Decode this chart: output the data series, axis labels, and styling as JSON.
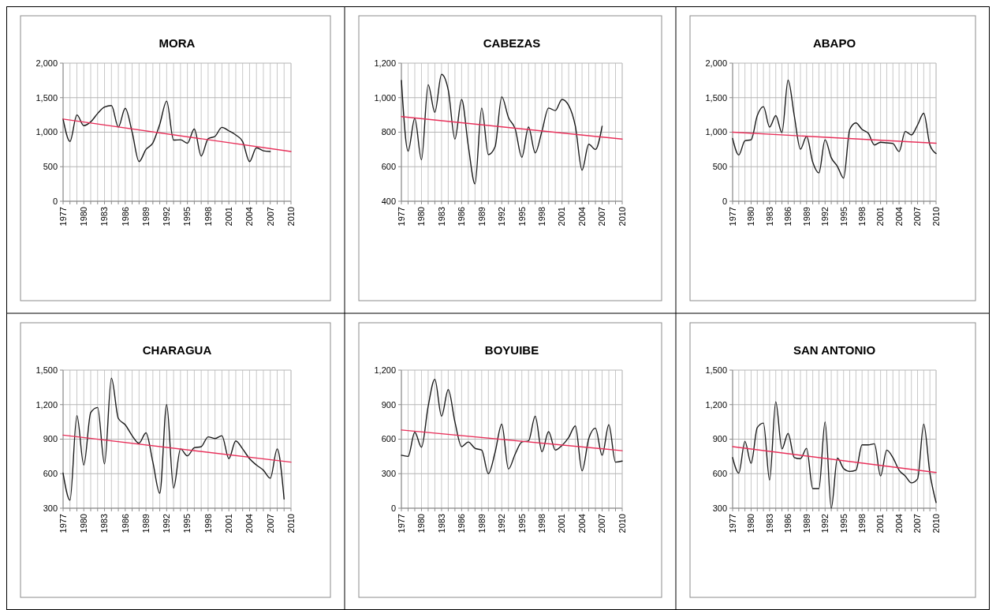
{
  "chart_data": [
    {
      "type": "line",
      "title": "MORA",
      "xlim": [
        1977,
        2010
      ],
      "ylim": [
        0,
        2000
      ],
      "yticks": [
        0,
        500,
        {
          "value": 1000,
          "label": "1,000"
        },
        {
          "value": 1500,
          "label": "1,500"
        },
        {
          "value": 2000,
          "label": "2,000"
        }
      ],
      "xticks": [
        1977,
        {
          "value": 1978,
          "label": null
        },
        {
          "value": 1979,
          "label": null
        },
        1980,
        {
          "value": 1981,
          "label": null
        },
        {
          "value": 1982,
          "label": null
        },
        1983,
        {
          "value": 1984,
          "label": null
        },
        {
          "value": 1985,
          "label": null
        },
        1986,
        {
          "value": 1987,
          "label": null
        },
        {
          "value": 1988,
          "label": null
        },
        1989,
        {
          "value": 1990,
          "label": null
        },
        {
          "value": 1991,
          "label": null
        },
        1992,
        {
          "value": 1993,
          "label": null
        },
        {
          "value": 1994,
          "label": null
        },
        1995,
        {
          "value": 1996,
          "label": null
        },
        {
          "value": 1997,
          "label": null
        },
        1998,
        {
          "value": 1999,
          "label": null
        },
        {
          "value": 2000,
          "label": null
        },
        2001,
        {
          "value": 2002,
          "label": null
        },
        {
          "value": 2003,
          "label": null
        },
        2004,
        {
          "value": 2005,
          "label": null
        },
        {
          "value": 2006,
          "label": null
        },
        2007,
        {
          "value": 2008,
          "label": null
        },
        {
          "value": 2009,
          "label": null
        },
        2010
      ],
      "grid": true,
      "series": [
        {
          "type": "line",
          "color": "#1a1a1a",
          "x": [
            1977,
            1978,
            1979,
            1980,
            1981,
            1982,
            1983,
            1984,
            1985,
            1986,
            1987,
            1988,
            1989,
            1990,
            1991,
            1992,
            1993,
            1994,
            1995,
            1996,
            1997,
            1998,
            1999,
            2000,
            2001,
            2002,
            2003,
            2004,
            2005,
            2006,
            2007
          ],
          "values": [
            1190,
            865,
            1250,
            1095,
            1150,
            1270,
            1365,
            1385,
            1075,
            1345,
            1000,
            575,
            750,
            845,
            1115,
            1450,
            885,
            890,
            840,
            1045,
            655,
            905,
            940,
            1070,
            1020,
            960,
            865,
            575,
            775,
            730,
            720
          ]
        },
        {
          "type": "line",
          "color": "#e8305a",
          "x": [
            1977,
            2010
          ],
          "values": [
            1190,
            720
          ]
        }
      ]
    },
    {
      "type": "line",
      "title": "CABEZAS",
      "xlim": [
        1977,
        2010
      ],
      "ylim": [
        400,
        1200
      ],
      "yticks": [
        400,
        600,
        800,
        {
          "value": 1000,
          "label": "1,000"
        },
        {
          "value": 1200,
          "label": "1,200"
        }
      ],
      "xticks": [
        1977,
        {
          "value": 1978,
          "label": null
        },
        {
          "value": 1979,
          "label": null
        },
        1980,
        {
          "value": 1981,
          "label": null
        },
        {
          "value": 1982,
          "label": null
        },
        1983,
        {
          "value": 1984,
          "label": null
        },
        {
          "value": 1985,
          "label": null
        },
        1986,
        {
          "value": 1987,
          "label": null
        },
        {
          "value": 1988,
          "label": null
        },
        1989,
        {
          "value": 1990,
          "label": null
        },
        {
          "value": 1991,
          "label": null
        },
        1992,
        {
          "value": 1993,
          "label": null
        },
        {
          "value": 1994,
          "label": null
        },
        1995,
        {
          "value": 1996,
          "label": null
        },
        {
          "value": 1997,
          "label": null
        },
        1998,
        {
          "value": 1999,
          "label": null
        },
        {
          "value": 2000,
          "label": null
        },
        2001,
        {
          "value": 2002,
          "label": null
        },
        {
          "value": 2003,
          "label": null
        },
        2004,
        {
          "value": 2005,
          "label": null
        },
        {
          "value": 2006,
          "label": null
        },
        2007,
        {
          "value": 2008,
          "label": null
        },
        {
          "value": 2009,
          "label": null
        },
        2010
      ],
      "grid": true,
      "series": [
        {
          "type": "line",
          "color": "#1a1a1a",
          "x": [
            1977,
            1978,
            1979,
            1980,
            1981,
            1982,
            1983,
            1984,
            1985,
            1986,
            1987,
            1988,
            1989,
            1990,
            1991,
            1992,
            1993,
            1994,
            1995,
            1996,
            1997,
            1998,
            1999,
            2000,
            2001,
            2002,
            2003,
            2004,
            2005,
            2006,
            2007
          ],
          "values": [
            1100,
            690,
            880,
            640,
            1075,
            915,
            1135,
            1045,
            760,
            990,
            720,
            500,
            940,
            670,
            715,
            1005,
            885,
            820,
            655,
            830,
            680,
            805,
            940,
            925,
            990,
            955,
            835,
            580,
            730,
            700,
            835
          ]
        },
        {
          "type": "line",
          "color": "#e8305a",
          "x": [
            1977,
            2010
          ],
          "values": [
            890,
            760
          ]
        }
      ]
    },
    {
      "type": "line",
      "title": "ABAPO",
      "xlim": [
        1977,
        2010
      ],
      "ylim": [
        0,
        2000
      ],
      "yticks": [
        0,
        500,
        {
          "value": 1000,
          "label": "1,000"
        },
        {
          "value": 1500,
          "label": "1,500"
        },
        {
          "value": 2000,
          "label": "2,000"
        }
      ],
      "xticks": [
        1977,
        {
          "value": 1978,
          "label": null
        },
        {
          "value": 1979,
          "label": null
        },
        1980,
        {
          "value": 1981,
          "label": null
        },
        {
          "value": 1982,
          "label": null
        },
        1983,
        {
          "value": 1984,
          "label": null
        },
        {
          "value": 1985,
          "label": null
        },
        1986,
        {
          "value": 1987,
          "label": null
        },
        {
          "value": 1988,
          "label": null
        },
        1989,
        {
          "value": 1990,
          "label": null
        },
        {
          "value": 1991,
          "label": null
        },
        1992,
        {
          "value": 1993,
          "label": null
        },
        {
          "value": 1994,
          "label": null
        },
        1995,
        {
          "value": 1996,
          "label": null
        },
        {
          "value": 1997,
          "label": null
        },
        1998,
        {
          "value": 1999,
          "label": null
        },
        {
          "value": 2000,
          "label": null
        },
        2001,
        {
          "value": 2002,
          "label": null
        },
        {
          "value": 2003,
          "label": null
        },
        2004,
        {
          "value": 2005,
          "label": null
        },
        {
          "value": 2006,
          "label": null
        },
        2007,
        {
          "value": 2008,
          "label": null
        },
        {
          "value": 2009,
          "label": null
        },
        2010
      ],
      "grid": true,
      "series": [
        {
          "type": "line",
          "color": "#1a1a1a",
          "x": [
            1977,
            1978,
            1979,
            1980,
            1981,
            1982,
            1983,
            1984,
            1985,
            1986,
            1987,
            1988,
            1989,
            1990,
            1991,
            1992,
            1993,
            1994,
            1995,
            1996,
            1997,
            1998,
            1999,
            2000,
            2001,
            2002,
            2003,
            2004,
            2005,
            2006,
            2007,
            2008,
            2009,
            2010
          ],
          "values": [
            910,
            670,
            875,
            890,
            1240,
            1370,
            1075,
            1240,
            995,
            1755,
            1240,
            755,
            940,
            565,
            410,
            890,
            630,
            505,
            335,
            1040,
            1135,
            1040,
            985,
            815,
            855,
            845,
            835,
            720,
            1010,
            960,
            1105,
            1275,
            815,
            690
          ]
        },
        {
          "type": "line",
          "color": "#e8305a",
          "x": [
            1977,
            2010
          ],
          "values": [
            1000,
            840
          ]
        }
      ]
    },
    {
      "type": "line",
      "title": "CHARAGUA",
      "xlim": [
        1977,
        2010
      ],
      "ylim": [
        300,
        1500
      ],
      "yticks": [
        300,
        600,
        900,
        {
          "value": 1200,
          "label": "1,200"
        },
        {
          "value": 1500,
          "label": "1,500"
        }
      ],
      "xticks": [
        1977,
        {
          "value": 1978,
          "label": null
        },
        {
          "value": 1979,
          "label": null
        },
        1980,
        {
          "value": 1981,
          "label": null
        },
        {
          "value": 1982,
          "label": null
        },
        1983,
        {
          "value": 1984,
          "label": null
        },
        {
          "value": 1985,
          "label": null
        },
        1986,
        {
          "value": 1987,
          "label": null
        },
        {
          "value": 1988,
          "label": null
        },
        1989,
        {
          "value": 1990,
          "label": null
        },
        {
          "value": 1991,
          "label": null
        },
        1992,
        {
          "value": 1993,
          "label": null
        },
        {
          "value": 1994,
          "label": null
        },
        1995,
        {
          "value": 1996,
          "label": null
        },
        {
          "value": 1997,
          "label": null
        },
        1998,
        {
          "value": 1999,
          "label": null
        },
        {
          "value": 2000,
          "label": null
        },
        2001,
        {
          "value": 2002,
          "label": null
        },
        {
          "value": 2003,
          "label": null
        },
        2004,
        {
          "value": 2005,
          "label": null
        },
        {
          "value": 2006,
          "label": null
        },
        2007,
        {
          "value": 2008,
          "label": null
        },
        {
          "value": 2009,
          "label": null
        },
        2010
      ],
      "grid": true,
      "series": [
        {
          "type": "line",
          "color": "#1a1a1a",
          "x": [
            1977,
            1978,
            1979,
            1980,
            1981,
            1982,
            1983,
            1984,
            1985,
            1986,
            1987,
            1988,
            1989,
            1990,
            1991,
            1992,
            1993,
            1994,
            1995,
            1996,
            1997,
            1998,
            1999,
            2000,
            2001,
            2002,
            2003,
            2004,
            2005,
            2006,
            2007,
            2008,
            2009
          ],
          "values": [
            605,
            370,
            1105,
            675,
            1130,
            1175,
            685,
            1430,
            1080,
            1025,
            930,
            865,
            955,
            700,
            430,
            1200,
            475,
            815,
            755,
            825,
            835,
            920,
            905,
            930,
            730,
            885,
            815,
            730,
            675,
            630,
            560,
            815,
            380
          ]
        },
        {
          "type": "line",
          "color": "#e8305a",
          "x": [
            1977,
            2010
          ],
          "values": [
            935,
            700
          ]
        }
      ]
    },
    {
      "type": "line",
      "title": "BOYUIBE",
      "xlim": [
        1977,
        2010
      ],
      "ylim": [
        0,
        1200
      ],
      "yticks": [
        0,
        300,
        600,
        900,
        {
          "value": 1200,
          "label": "1,200"
        }
      ],
      "xticks": [
        1977,
        {
          "value": 1978,
          "label": null
        },
        {
          "value": 1979,
          "label": null
        },
        1980,
        {
          "value": 1981,
          "label": null
        },
        {
          "value": 1982,
          "label": null
        },
        1983,
        {
          "value": 1984,
          "label": null
        },
        {
          "value": 1985,
          "label": null
        },
        1986,
        {
          "value": 1987,
          "label": null
        },
        {
          "value": 1988,
          "label": null
        },
        1989,
        {
          "value": 1990,
          "label": null
        },
        {
          "value": 1991,
          "label": null
        },
        1992,
        {
          "value": 1993,
          "label": null
        },
        {
          "value": 1994,
          "label": null
        },
        1995,
        {
          "value": 1996,
          "label": null
        },
        {
          "value": 1997,
          "label": null
        },
        1998,
        {
          "value": 1999,
          "label": null
        },
        {
          "value": 2000,
          "label": null
        },
        2001,
        {
          "value": 2002,
          "label": null
        },
        {
          "value": 2003,
          "label": null
        },
        2004,
        {
          "value": 2005,
          "label": null
        },
        {
          "value": 2006,
          "label": null
        },
        2007,
        {
          "value": 2008,
          "label": null
        },
        {
          "value": 2009,
          "label": null
        },
        2010
      ],
      "grid": true,
      "series": [
        {
          "type": "line",
          "color": "#1a1a1a",
          "x": [
            1977,
            1978,
            1979,
            1980,
            1981,
            1982,
            1983,
            1984,
            1985,
            1986,
            1987,
            1988,
            1989,
            1990,
            1991,
            1992,
            1993,
            1994,
            1995,
            1996,
            1997,
            1998,
            1999,
            2000,
            2001,
            2002,
            2003,
            2004,
            2005,
            2006,
            2007,
            2008,
            2009,
            2010
          ],
          "values": [
            460,
            450,
            660,
            530,
            885,
            1120,
            800,
            1030,
            750,
            535,
            575,
            520,
            505,
            300,
            485,
            730,
            340,
            470,
            575,
            585,
            800,
            490,
            665,
            505,
            545,
            615,
            715,
            325,
            605,
            695,
            460,
            725,
            400,
            410
          ]
        },
        {
          "type": "line",
          "color": "#e8305a",
          "x": [
            1977,
            2010
          ],
          "values": [
            680,
            500
          ]
        }
      ]
    },
    {
      "type": "line",
      "title": "SAN ANTONIO",
      "xlim": [
        1977,
        2010
      ],
      "ylim": [
        300,
        1500
      ],
      "yticks": [
        300,
        600,
        900,
        {
          "value": 1200,
          "label": "1,200"
        },
        {
          "value": 1500,
          "label": "1,500"
        }
      ],
      "xticks": [
        1977,
        {
          "value": 1978,
          "label": null
        },
        {
          "value": 1979,
          "label": null
        },
        1980,
        {
          "value": 1981,
          "label": null
        },
        {
          "value": 1982,
          "label": null
        },
        1983,
        {
          "value": 1984,
          "label": null
        },
        {
          "value": 1985,
          "label": null
        },
        1986,
        {
          "value": 1987,
          "label": null
        },
        {
          "value": 1988,
          "label": null
        },
        1989,
        {
          "value": 1990,
          "label": null
        },
        {
          "value": 1991,
          "label": null
        },
        1992,
        {
          "value": 1993,
          "label": null
        },
        {
          "value": 1994,
          "label": null
        },
        1995,
        {
          "value": 1996,
          "label": null
        },
        {
          "value": 1997,
          "label": null
        },
        1998,
        {
          "value": 1999,
          "label": null
        },
        {
          "value": 2000,
          "label": null
        },
        2001,
        {
          "value": 2002,
          "label": null
        },
        {
          "value": 2003,
          "label": null
        },
        2004,
        {
          "value": 2005,
          "label": null
        },
        {
          "value": 2006,
          "label": null
        },
        2007,
        {
          "value": 2008,
          "label": null
        },
        {
          "value": 2009,
          "label": null
        },
        2010
      ],
      "grid": true,
      "series": [
        {
          "type": "line",
          "color": "#1a1a1a",
          "x": [
            1977,
            1978,
            1979,
            1980,
            1981,
            1982,
            1983,
            1984,
            1985,
            1986,
            1987,
            1988,
            1989,
            1990,
            1991,
            1992,
            1993,
            1994,
            1995,
            1996,
            1997,
            1998,
            1999,
            2000,
            2001,
            2002,
            2003,
            2004,
            2005,
            2006,
            2007,
            2008,
            2009,
            2010
          ],
          "values": [
            740,
            605,
            880,
            690,
            1000,
            1040,
            545,
            1225,
            815,
            950,
            740,
            730,
            820,
            470,
            470,
            1050,
            300,
            735,
            645,
            620,
            630,
            850,
            850,
            860,
            580,
            805,
            740,
            630,
            580,
            520,
            555,
            1030,
            605,
            350
          ]
        },
        {
          "type": "line",
          "color": "#e8305a",
          "x": [
            1977,
            2010
          ],
          "values": [
            835,
            610
          ]
        }
      ]
    }
  ]
}
